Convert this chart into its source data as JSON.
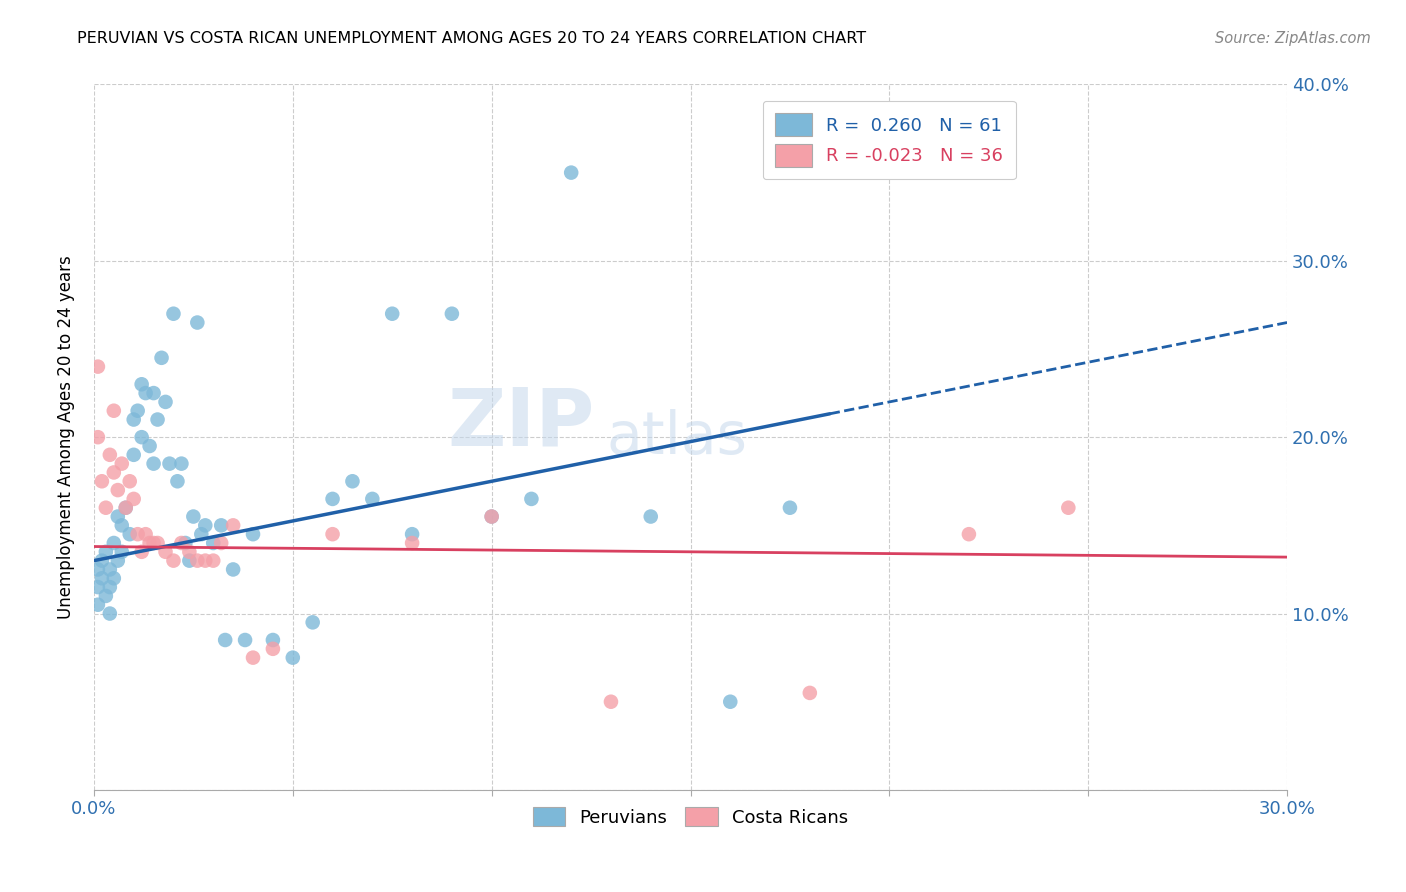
{
  "title": "PERUVIAN VS COSTA RICAN UNEMPLOYMENT AMONG AGES 20 TO 24 YEARS CORRELATION CHART",
  "source": "Source: ZipAtlas.com",
  "ylabel": "Unemployment Among Ages 20 to 24 years",
  "xlim": [
    0.0,
    0.3
  ],
  "ylim": [
    0.0,
    0.4
  ],
  "xticks": [
    0.0,
    0.05,
    0.1,
    0.15,
    0.2,
    0.25,
    0.3
  ],
  "yticks": [
    0.0,
    0.1,
    0.2,
    0.3,
    0.4
  ],
  "peruvians_R": 0.26,
  "peruvians_N": 61,
  "costa_ricans_R": -0.023,
  "costa_ricans_N": 36,
  "blue_color": "#7db8d8",
  "blue_line_color": "#2060a8",
  "pink_color": "#f4a0a8",
  "pink_line_color": "#d84060",
  "watermark_zip": "ZIP",
  "watermark_atlas": "atlas",
  "peruvians_x": [
    0.001,
    0.001,
    0.001,
    0.002,
    0.002,
    0.003,
    0.003,
    0.004,
    0.004,
    0.004,
    0.005,
    0.005,
    0.006,
    0.006,
    0.007,
    0.007,
    0.008,
    0.009,
    0.01,
    0.01,
    0.011,
    0.012,
    0.012,
    0.013,
    0.014,
    0.015,
    0.015,
    0.016,
    0.017,
    0.018,
    0.019,
    0.02,
    0.021,
    0.022,
    0.023,
    0.024,
    0.025,
    0.026,
    0.027,
    0.028,
    0.03,
    0.032,
    0.033,
    0.035,
    0.038,
    0.04,
    0.045,
    0.05,
    0.055,
    0.06,
    0.065,
    0.07,
    0.075,
    0.08,
    0.09,
    0.1,
    0.11,
    0.12,
    0.14,
    0.16,
    0.175
  ],
  "peruvians_y": [
    0.125,
    0.115,
    0.105,
    0.13,
    0.12,
    0.135,
    0.11,
    0.125,
    0.115,
    0.1,
    0.14,
    0.12,
    0.155,
    0.13,
    0.15,
    0.135,
    0.16,
    0.145,
    0.21,
    0.19,
    0.215,
    0.23,
    0.2,
    0.225,
    0.195,
    0.225,
    0.185,
    0.21,
    0.245,
    0.22,
    0.185,
    0.27,
    0.175,
    0.185,
    0.14,
    0.13,
    0.155,
    0.265,
    0.145,
    0.15,
    0.14,
    0.15,
    0.085,
    0.125,
    0.085,
    0.145,
    0.085,
    0.075,
    0.095,
    0.165,
    0.175,
    0.165,
    0.27,
    0.145,
    0.27,
    0.155,
    0.165,
    0.35,
    0.155,
    0.05,
    0.16
  ],
  "costa_ricans_x": [
    0.001,
    0.001,
    0.002,
    0.003,
    0.004,
    0.005,
    0.005,
    0.006,
    0.007,
    0.008,
    0.009,
    0.01,
    0.011,
    0.012,
    0.013,
    0.014,
    0.015,
    0.016,
    0.018,
    0.02,
    0.022,
    0.024,
    0.026,
    0.028,
    0.03,
    0.032,
    0.035,
    0.04,
    0.045,
    0.06,
    0.08,
    0.1,
    0.13,
    0.18,
    0.22,
    0.245
  ],
  "costa_ricans_y": [
    0.24,
    0.2,
    0.175,
    0.16,
    0.19,
    0.215,
    0.18,
    0.17,
    0.185,
    0.16,
    0.175,
    0.165,
    0.145,
    0.135,
    0.145,
    0.14,
    0.14,
    0.14,
    0.135,
    0.13,
    0.14,
    0.135,
    0.13,
    0.13,
    0.13,
    0.14,
    0.15,
    0.075,
    0.08,
    0.145,
    0.14,
    0.155,
    0.05,
    0.055,
    0.145,
    0.16
  ],
  "peru_line_solid_end": 0.185,
  "peru_line_dash_start": 0.185,
  "peru_line_end": 0.3,
  "peru_line_y0": 0.13,
  "peru_line_y_solid_end": 0.215,
  "peru_line_y_end": 0.265,
  "costa_line_y0": 0.138,
  "costa_line_y_end": 0.132
}
